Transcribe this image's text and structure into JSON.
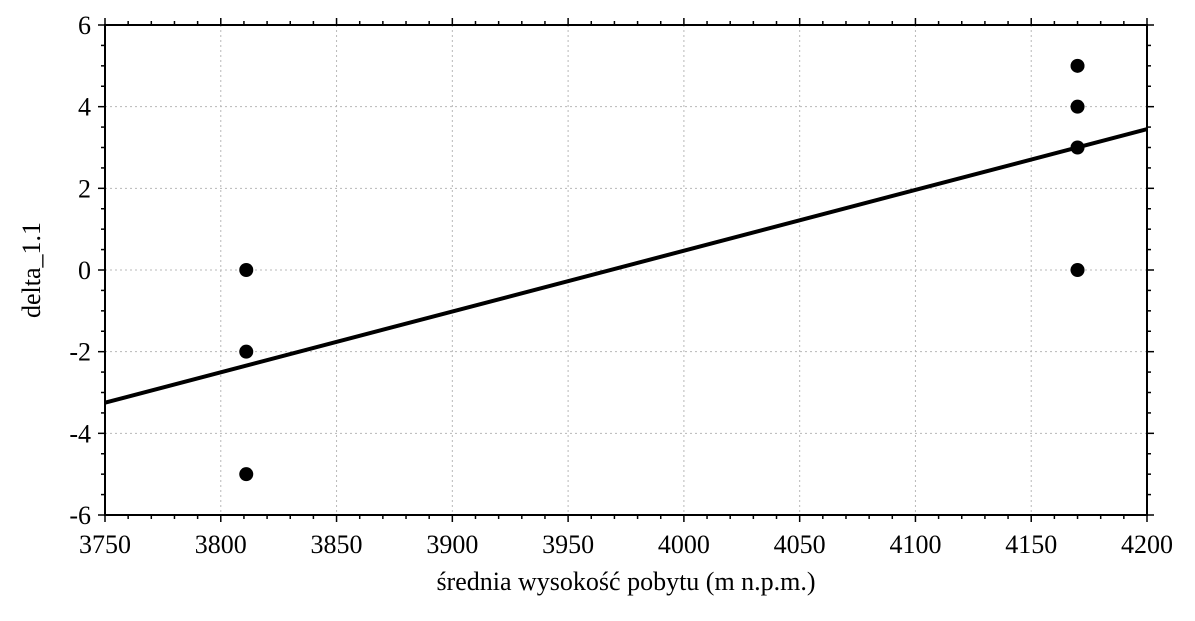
{
  "chart_data": {
    "type": "scatter",
    "xlabel": "średnia wysokość pobytu (m n.p.m.)",
    "ylabel": "delta_1.1",
    "xlim": [
      3750,
      4200
    ],
    "ylim": [
      -6,
      6
    ],
    "x_ticks": [
      3750,
      3800,
      3850,
      3900,
      3950,
      4000,
      4050,
      4100,
      4150,
      4200
    ],
    "y_ticks": [
      -6,
      -4,
      -2,
      0,
      2,
      4,
      6
    ],
    "grid": true,
    "points": [
      {
        "x": 3811,
        "y": 0
      },
      {
        "x": 3811,
        "y": -2
      },
      {
        "x": 3811,
        "y": -5
      },
      {
        "x": 4170,
        "y": 5
      },
      {
        "x": 4170,
        "y": 4
      },
      {
        "x": 4170,
        "y": 3
      },
      {
        "x": 4170,
        "y": 0
      }
    ],
    "fit_line": {
      "x": [
        3750,
        4200
      ],
      "y": [
        -3.25,
        3.45
      ]
    }
  }
}
